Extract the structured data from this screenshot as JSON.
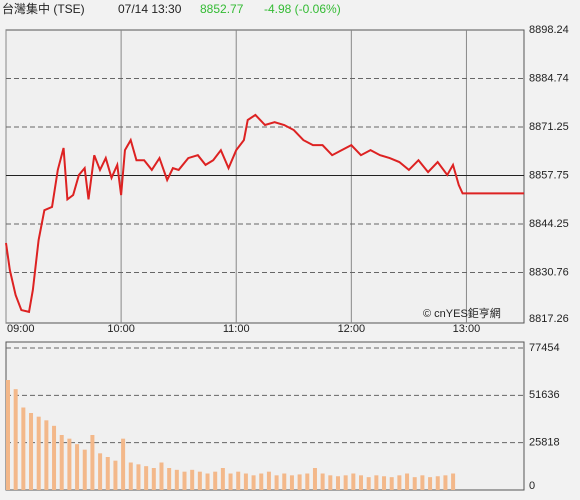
{
  "header": {
    "name": "台灣集中 (TSE)",
    "time": "07/14 13:30",
    "price": "8852.77",
    "change": "-4.98 (-0.06%)"
  },
  "chart_data": [
    {
      "type": "line",
      "annotation": "© cnYES鉅亨網",
      "x": [
        0,
        2,
        5,
        8,
        12,
        14,
        17,
        20,
        24,
        27,
        30,
        32,
        35,
        38,
        41,
        43,
        46,
        49,
        52,
        55,
        58,
        60,
        62,
        65,
        68,
        72,
        76,
        80,
        84,
        87,
        90,
        95,
        100,
        104,
        108,
        112,
        116,
        120,
        124,
        126,
        130,
        135,
        140,
        145,
        150,
        155,
        160,
        165,
        170,
        175,
        180,
        185,
        190,
        195,
        200,
        205,
        210,
        215,
        220,
        225,
        230,
        233,
        236,
        238,
        270
      ],
      "series": [
        {
          "name": "TSE",
          "color": "#dd2222",
          "values": [
            8838.97,
            8831.45,
            8824.5,
            8820.3,
            8819.8,
            8825.9,
            8839.8,
            8848.1,
            8849.0,
            8859.3,
            8865.4,
            8851.1,
            8852.3,
            8857.9,
            8859.8,
            8851.1,
            8863.4,
            8859.3,
            8862.6,
            8857.1,
            8860.7,
            8852.3,
            8864.8,
            8867.6,
            8862.0,
            8862.0,
            8859.3,
            8862.6,
            8856.5,
            8859.8,
            8859.3,
            8862.6,
            8863.4,
            8860.7,
            8862.0,
            8864.8,
            8859.8,
            8864.8,
            8867.6,
            8873.2,
            8874.6,
            8871.8,
            8872.6,
            8871.8,
            8870.4,
            8867.6,
            8866.2,
            8866.2,
            8863.4,
            8864.8,
            8866.2,
            8863.4,
            8864.8,
            8863.4,
            8862.6,
            8861.5,
            8859.3,
            8862.0,
            8858.7,
            8861.5,
            8857.9,
            8860.7,
            8855.1,
            8852.77,
            8852.77
          ]
        }
      ],
      "xlim": [
        0,
        270
      ],
      "xticks": [
        {
          "value": 0,
          "label": "09:00"
        },
        {
          "value": 60,
          "label": "10:00"
        },
        {
          "value": 120,
          "label": "11:00"
        },
        {
          "value": 180,
          "label": "12:00"
        },
        {
          "value": 240,
          "label": "13:00"
        }
      ],
      "ylim": [
        8817.26,
        8898.24
      ],
      "yticks": [
        8817.26,
        8830.76,
        8844.25,
        8857.75,
        8871.25,
        8884.74,
        8898.24
      ],
      "reference_line": 8857.75,
      "grid": true
    },
    {
      "type": "bar",
      "color": "#f3b88a",
      "x": [
        0,
        4,
        8,
        12,
        16,
        20,
        24,
        28,
        32,
        36,
        40,
        44,
        48,
        52,
        56,
        60,
        64,
        68,
        72,
        76,
        80,
        84,
        88,
        92,
        96,
        100,
        104,
        108,
        112,
        116,
        120,
        124,
        128,
        132,
        136,
        140,
        144,
        148,
        152,
        156,
        160,
        164,
        168,
        172,
        176,
        180,
        184,
        188,
        192,
        196,
        200,
        204,
        208,
        212,
        216,
        220,
        224,
        228,
        232
      ],
      "values": [
        60000,
        55000,
        45000,
        42000,
        40000,
        38000,
        35000,
        30000,
        28000,
        25000,
        22000,
        30000,
        20000,
        18000,
        16000,
        28000,
        15000,
        14000,
        13000,
        12000,
        15000,
        12000,
        11000,
        10000,
        11000,
        10000,
        9000,
        10000,
        12000,
        9000,
        10000,
        9000,
        8000,
        9000,
        10000,
        8000,
        9000,
        8000,
        8500,
        9000,
        12000,
        9000,
        8000,
        7500,
        8000,
        9000,
        8000,
        7000,
        8000,
        7500,
        7000,
        8000,
        9000,
        7000,
        8000,
        7000,
        7500,
        8000,
        9000
      ],
      "xlim": [
        0,
        270
      ],
      "ylim": [
        0,
        77454
      ],
      "yticks": [
        0,
        25818,
        51636,
        77454
      ],
      "grid": true
    }
  ]
}
